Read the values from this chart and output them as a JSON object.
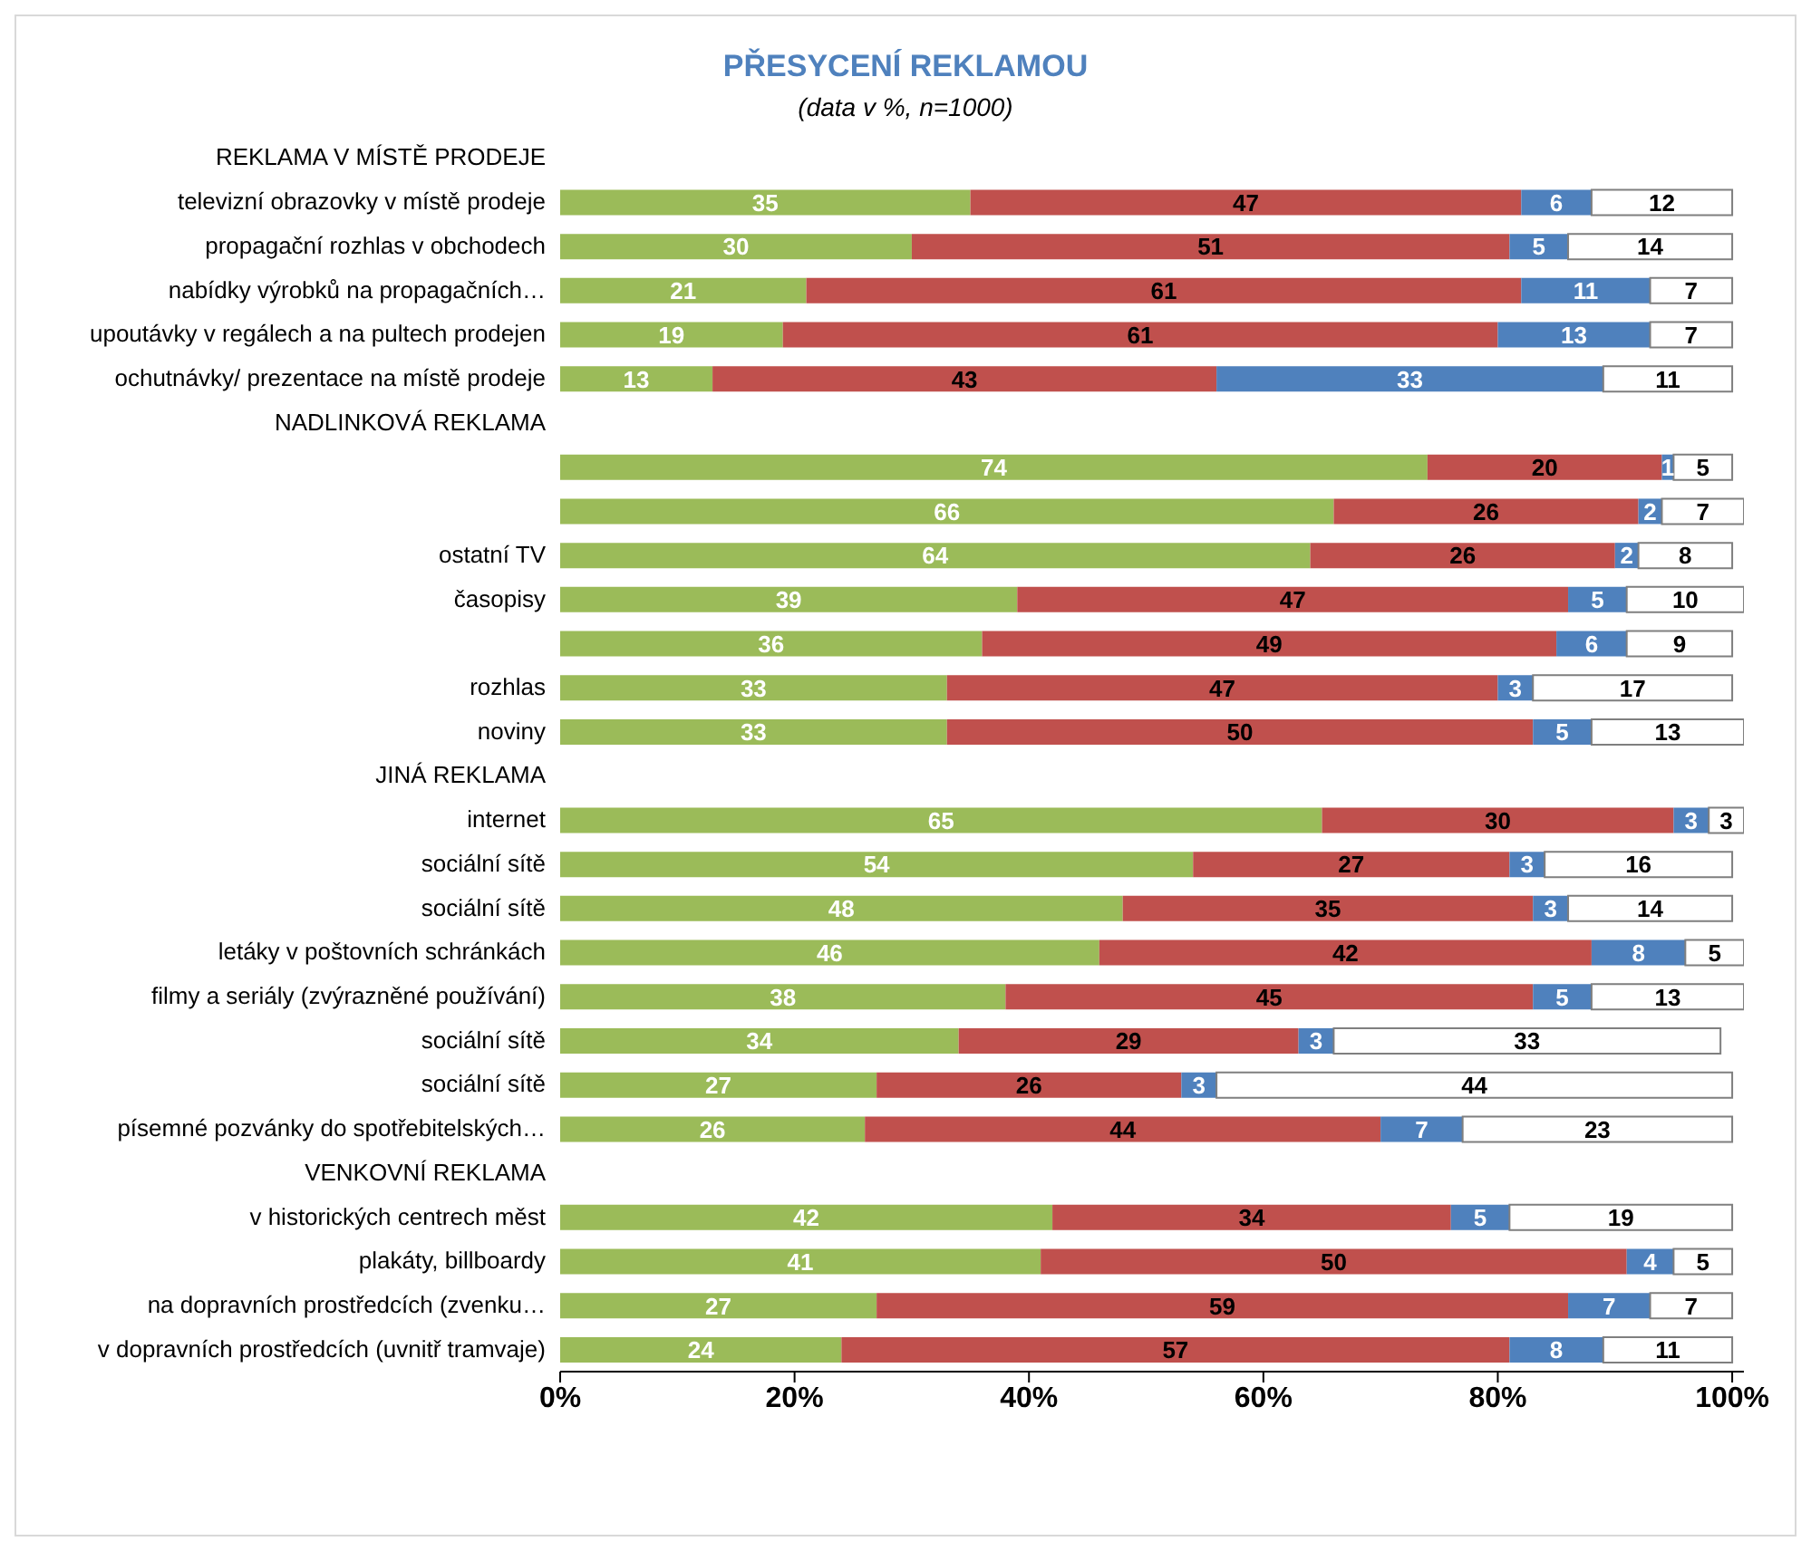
{
  "chart_data": {
    "type": "bar",
    "orientation": "horizontal",
    "stacked": true,
    "title": "PŘESYCENÍ REKLAMOU",
    "subtitle": "(data v %, n=1000)",
    "categories": [
      "REKLAMA V MÍSTĚ PRODEJE",
      "televizní obrazovky v místě prodeje",
      "propagační rozhlas v obchodech",
      "nabídky výrobků na propagačních…",
      "upoutávky v regálech a na pultech prodejen",
      "ochutnávky/ prezentace na místě prodeje",
      "NADLINKOVÁ REKLAMA",
      null,
      null,
      "ostatní TV",
      "časopisy",
      null,
      "rozhlas",
      "noviny",
      "JINÁ REKLAMA",
      "internet",
      "sociální sítě",
      "sociální sítě",
      "letáky v poštovních schránkách",
      "filmy a seriály (zvýrazněné používání)",
      "sociální sítě",
      "sociální sítě",
      "písemné pozvánky do spotřebitelských…",
      "VENKOVNÍ REKLAMA",
      "v historických centrech měst",
      "plakáty, billboardy",
      "na dopravních prostředcích (zvenku…",
      "v dopravních prostředcích (uvnitř tramvaje)"
    ],
    "series": [
      {
        "color": "#9bbb59",
        "values": [
          null,
          35,
          30,
          21,
          19,
          13,
          null,
          74,
          66,
          64,
          39,
          36,
          33,
          33,
          null,
          65,
          54,
          48,
          46,
          38,
          34,
          27,
          26,
          null,
          42,
          41,
          27,
          24
        ]
      },
      {
        "color": "#c0504d",
        "values": [
          null,
          47,
          51,
          61,
          61,
          43,
          null,
          20,
          26,
          26,
          47,
          49,
          47,
          50,
          null,
          30,
          27,
          35,
          42,
          45,
          29,
          26,
          44,
          null,
          34,
          50,
          59,
          57
        ]
      },
      {
        "color": "#4f81bd",
        "values": [
          null,
          6,
          5,
          11,
          13,
          33,
          null,
          1,
          2,
          2,
          5,
          6,
          3,
          5,
          null,
          3,
          3,
          3,
          8,
          5,
          3,
          3,
          7,
          null,
          5,
          4,
          7,
          8
        ]
      },
      {
        "color": "#ffffff",
        "values": [
          null,
          12,
          14,
          7,
          7,
          11,
          null,
          5,
          7,
          8,
          10,
          9,
          17,
          13,
          null,
          3,
          16,
          14,
          5,
          13,
          33,
          44,
          23,
          null,
          19,
          5,
          7,
          11
        ]
      }
    ],
    "xlim": [
      0,
      101
    ],
    "xticks": [
      {
        "value": 0,
        "label": "0%"
      },
      {
        "value": 20,
        "label": "20%"
      },
      {
        "value": 40,
        "label": "40%"
      },
      {
        "value": 60,
        "label": "60%"
      },
      {
        "value": 80,
        "label": "80%"
      },
      {
        "value": 100,
        "label": "100%"
      }
    ],
    "data_labels": true,
    "grid": false,
    "legend": false
  }
}
